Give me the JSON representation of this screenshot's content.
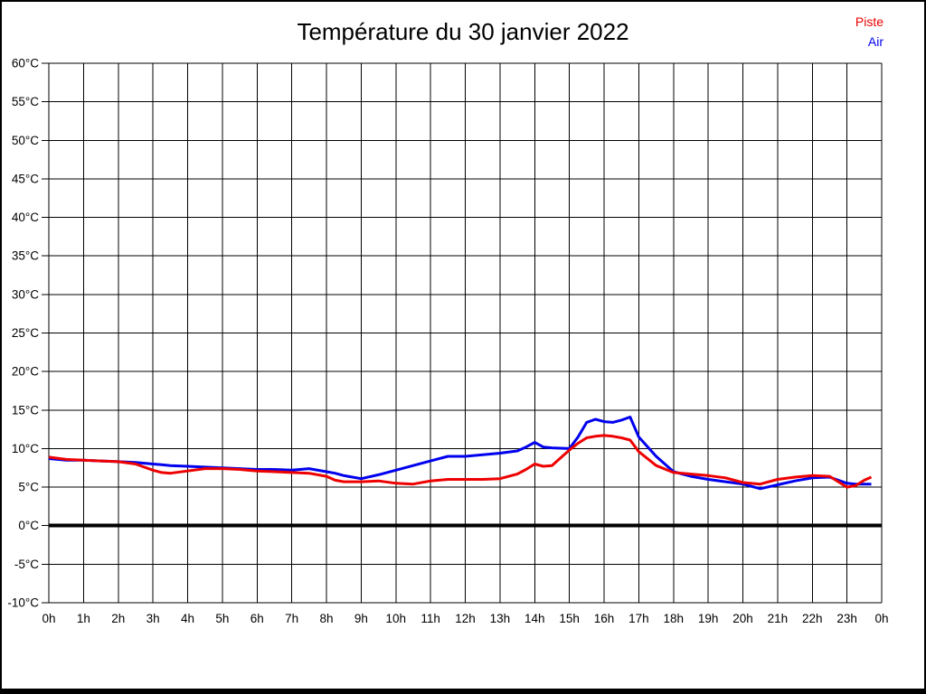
{
  "page": {
    "background": "#ffffff",
    "border_color": "#000000"
  },
  "chart_data": {
    "type": "line",
    "title": "Température du 30 janvier 2022",
    "xlabel": "",
    "ylabel": "",
    "xlim": [
      0,
      24
    ],
    "ylim": [
      -10,
      60
    ],
    "grid": true,
    "legend_position": "top-right",
    "zero_line_value": 0,
    "grid_color": "#000000",
    "x_ticks": [
      {
        "value": 0,
        "label": "0h"
      },
      {
        "value": 1,
        "label": "1h"
      },
      {
        "value": 2,
        "label": "2h"
      },
      {
        "value": 3,
        "label": "3h"
      },
      {
        "value": 4,
        "label": "4h"
      },
      {
        "value": 5,
        "label": "5h"
      },
      {
        "value": 6,
        "label": "6h"
      },
      {
        "value": 7,
        "label": "7h"
      },
      {
        "value": 8,
        "label": "8h"
      },
      {
        "value": 9,
        "label": "9h"
      },
      {
        "value": 10,
        "label": "10h"
      },
      {
        "value": 11,
        "label": "11h"
      },
      {
        "value": 12,
        "label": "12h"
      },
      {
        "value": 13,
        "label": "13h"
      },
      {
        "value": 14,
        "label": "14h"
      },
      {
        "value": 15,
        "label": "15h"
      },
      {
        "value": 16,
        "label": "16h"
      },
      {
        "value": 17,
        "label": "17h"
      },
      {
        "value": 18,
        "label": "18h"
      },
      {
        "value": 19,
        "label": "19h"
      },
      {
        "value": 20,
        "label": "20h"
      },
      {
        "value": 21,
        "label": "21h"
      },
      {
        "value": 22,
        "label": "22h"
      },
      {
        "value": 23,
        "label": "23h"
      },
      {
        "value": 24,
        "label": "0h"
      }
    ],
    "y_ticks": [
      {
        "value": 60,
        "label": "60°C"
      },
      {
        "value": 55,
        "label": "55°C"
      },
      {
        "value": 50,
        "label": "50°C"
      },
      {
        "value": 45,
        "label": "45°C"
      },
      {
        "value": 40,
        "label": "40°C"
      },
      {
        "value": 35,
        "label": "35°C"
      },
      {
        "value": 30,
        "label": "30°C"
      },
      {
        "value": 25,
        "label": "25°C"
      },
      {
        "value": 20,
        "label": "20°C"
      },
      {
        "value": 15,
        "label": "15°C"
      },
      {
        "value": 10,
        "label": "10°C"
      },
      {
        "value": 5,
        "label": "5°C"
      },
      {
        "value": 0,
        "label": "0°C"
      },
      {
        "value": -5,
        "label": "-5°C"
      },
      {
        "value": -10,
        "label": "-10°C"
      }
    ],
    "x": [
      0,
      0.5,
      1,
      1.5,
      2,
      2.5,
      3,
      3.25,
      3.5,
      4,
      4.5,
      5,
      5.5,
      6,
      6.5,
      7,
      7.5,
      8,
      8.25,
      8.5,
      9,
      9.5,
      10,
      10.5,
      11,
      11.5,
      12,
      12.5,
      13,
      13.5,
      13.75,
      14,
      14.25,
      14.5,
      15,
      15.25,
      15.5,
      15.75,
      16,
      16.25,
      16.5,
      16.75,
      17,
      17.5,
      18,
      18.5,
      19,
      19.5,
      20,
      20.5,
      21,
      21.5,
      22,
      22.5,
      23,
      23.25,
      23.5,
      23.7
    ],
    "series": [
      {
        "name": "Air",
        "color": "#0000ee",
        "values": [
          8.7,
          8.5,
          8.5,
          8.4,
          8.3,
          8.2,
          8.0,
          7.9,
          7.8,
          7.7,
          7.6,
          7.5,
          7.4,
          7.3,
          7.3,
          7.2,
          7.4,
          7.0,
          6.8,
          6.5,
          6.1,
          6.6,
          7.2,
          7.8,
          8.4,
          9.0,
          9.0,
          9.2,
          9.4,
          9.7,
          10.2,
          10.8,
          10.2,
          10.1,
          10.0,
          11.5,
          13.4,
          13.8,
          13.5,
          13.4,
          13.7,
          14.1,
          11.5,
          9.0,
          7.0,
          6.4,
          6.0,
          5.7,
          5.4,
          4.8,
          5.3,
          5.8,
          6.2,
          6.3,
          5.5,
          5.4,
          5.4,
          5.4
        ]
      },
      {
        "name": "Piste",
        "color": "#ee0000",
        "values": [
          8.9,
          8.6,
          8.5,
          8.4,
          8.3,
          8.0,
          7.2,
          6.9,
          6.8,
          7.1,
          7.4,
          7.4,
          7.3,
          7.1,
          7.0,
          6.9,
          6.8,
          6.4,
          5.9,
          5.7,
          5.7,
          5.8,
          5.5,
          5.4,
          5.8,
          6.0,
          6.0,
          6.0,
          6.1,
          6.7,
          7.3,
          8.0,
          7.7,
          7.8,
          9.8,
          10.7,
          11.4,
          11.6,
          11.7,
          11.6,
          11.4,
          11.1,
          9.6,
          7.8,
          6.9,
          6.7,
          6.5,
          6.2,
          5.6,
          5.4,
          6.0,
          6.3,
          6.5,
          6.4,
          5.0,
          5.2,
          5.9,
          6.3
        ]
      }
    ]
  },
  "legend": {
    "order": [
      "Piste",
      "Air"
    ]
  }
}
